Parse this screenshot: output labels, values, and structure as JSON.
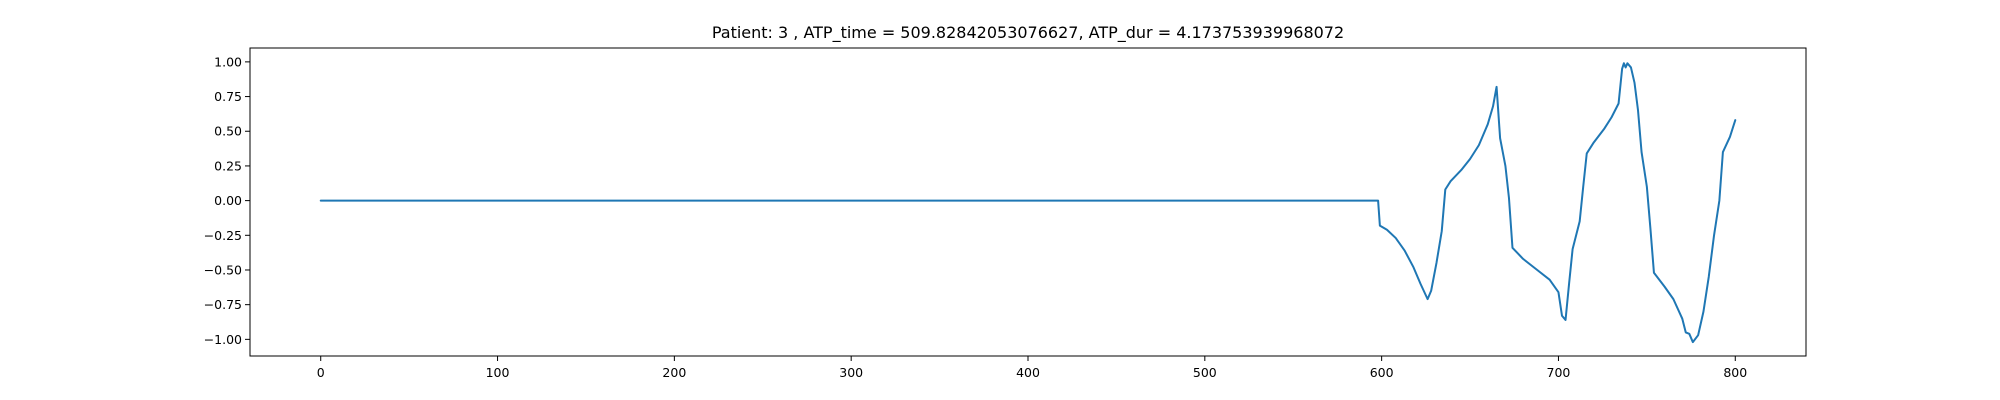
{
  "chart_data": {
    "type": "line",
    "title": "Patient: 3 , ATP_time = 509.82842053076627, ATP_dur = 4.173753939968072",
    "xlabel": "",
    "ylabel": "",
    "xlim": [
      -40,
      840
    ],
    "ylim": [
      -1.12,
      1.1
    ],
    "x_ticks": [
      0,
      100,
      200,
      300,
      400,
      500,
      600,
      700,
      800
    ],
    "y_ticks": [
      1.0,
      0.75,
      0.5,
      0.25,
      0.0,
      -0.25,
      -0.5,
      -0.75,
      -1.0
    ],
    "x_tick_labels": [
      "0",
      "100",
      "200",
      "300",
      "400",
      "500",
      "600",
      "700",
      "800"
    ],
    "y_tick_labels": [
      "1.00",
      "0.75",
      "0.50",
      "0.25",
      "0.00",
      "−0.25",
      "−0.50",
      "−0.75",
      "−1.00"
    ],
    "grid": false,
    "series": [
      {
        "color": "#1f77b4",
        "points": [
          [
            0,
            0.0
          ],
          [
            100,
            0.0
          ],
          [
            200,
            0.0
          ],
          [
            300,
            0.0
          ],
          [
            400,
            0.0
          ],
          [
            500,
            0.0
          ],
          [
            598,
            0.0
          ],
          [
            599,
            -0.18
          ],
          [
            603,
            -0.21
          ],
          [
            608,
            -0.27
          ],
          [
            613,
            -0.36
          ],
          [
            618,
            -0.48
          ],
          [
            622,
            -0.6
          ],
          [
            626,
            -0.71
          ],
          [
            628,
            -0.65
          ],
          [
            631,
            -0.45
          ],
          [
            634,
            -0.22
          ],
          [
            636,
            0.08
          ],
          [
            639,
            0.14
          ],
          [
            645,
            0.22
          ],
          [
            650,
            0.3
          ],
          [
            655,
            0.4
          ],
          [
            660,
            0.55
          ],
          [
            663,
            0.68
          ],
          [
            665,
            0.82
          ],
          [
            667,
            0.45
          ],
          [
            670,
            0.25
          ],
          [
            672,
            0.02
          ],
          [
            674,
            -0.34
          ],
          [
            680,
            -0.42
          ],
          [
            688,
            -0.5
          ],
          [
            695,
            -0.57
          ],
          [
            700,
            -0.66
          ],
          [
            702,
            -0.83
          ],
          [
            704,
            -0.86
          ],
          [
            706,
            -0.6
          ],
          [
            708,
            -0.35
          ],
          [
            712,
            -0.15
          ],
          [
            714,
            0.1
          ],
          [
            716,
            0.34
          ],
          [
            720,
            0.42
          ],
          [
            726,
            0.52
          ],
          [
            730,
            0.6
          ],
          [
            734,
            0.7
          ],
          [
            736,
            0.95
          ],
          [
            737,
            0.99
          ],
          [
            738,
            0.96
          ],
          [
            739,
            0.99
          ],
          [
            741,
            0.96
          ],
          [
            743,
            0.85
          ],
          [
            745,
            0.65
          ],
          [
            747,
            0.35
          ],
          [
            750,
            0.1
          ],
          [
            752,
            -0.2
          ],
          [
            754,
            -0.52
          ],
          [
            760,
            -0.62
          ],
          [
            765,
            -0.71
          ],
          [
            770,
            -0.85
          ],
          [
            772,
            -0.95
          ],
          [
            774,
            -0.96
          ],
          [
            776,
            -1.02
          ],
          [
            779,
            -0.97
          ],
          [
            782,
            -0.8
          ],
          [
            785,
            -0.55
          ],
          [
            788,
            -0.25
          ],
          [
            791,
            0.0
          ],
          [
            793,
            0.35
          ],
          [
            797,
            0.46
          ],
          [
            800,
            0.58
          ]
        ]
      }
    ]
  }
}
